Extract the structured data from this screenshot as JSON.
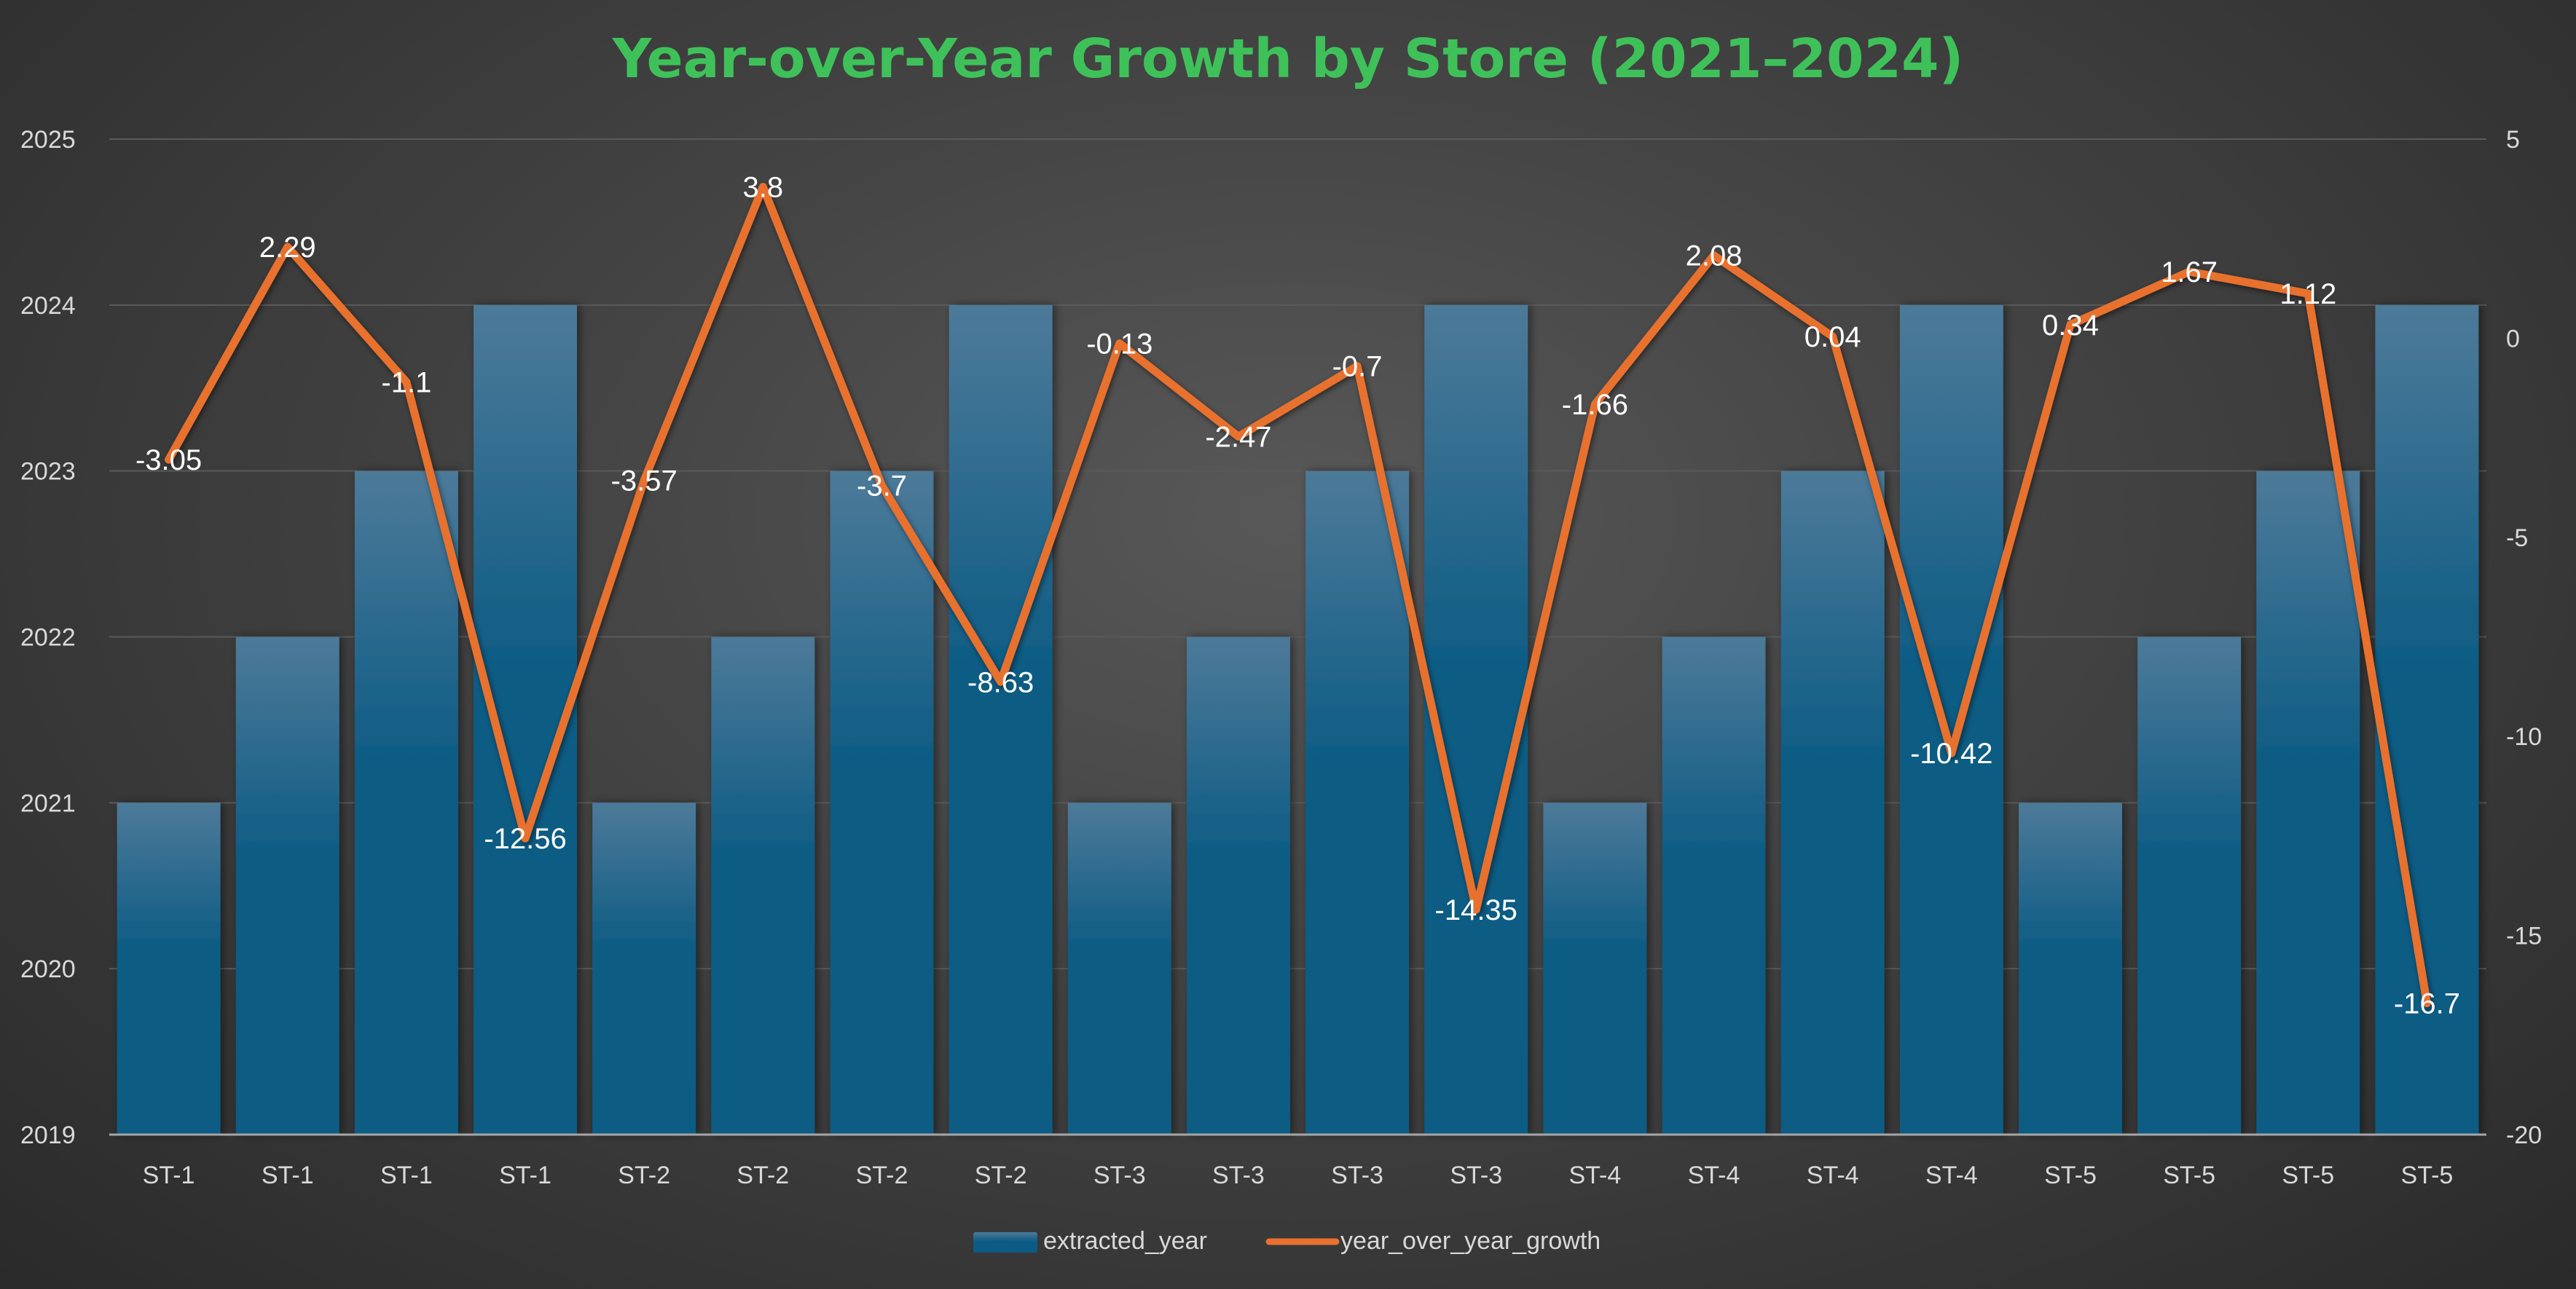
{
  "colors": {
    "title": "#3fc15a",
    "bar_top": "#4d7a99",
    "bar_bottom": "#0c5b84",
    "line": "#e8712f",
    "grid": "#5a5a5a",
    "axis": "#a6a6a6"
  },
  "chart_data": {
    "type": "bar",
    "title": "Year-over-Year Growth by Store (2021–2024)",
    "categories": [
      "ST-1",
      "ST-1",
      "ST-1",
      "ST-1",
      "ST-2",
      "ST-2",
      "ST-2",
      "ST-2",
      "ST-3",
      "ST-3",
      "ST-3",
      "ST-3",
      "ST-4",
      "ST-4",
      "ST-4",
      "ST-4",
      "ST-5",
      "ST-5",
      "ST-5",
      "ST-5"
    ],
    "series": [
      {
        "name": "extracted_year",
        "type": "bar",
        "axis": "left",
        "values": [
          2021,
          2022,
          2023,
          2024,
          2021,
          2022,
          2023,
          2024,
          2021,
          2022,
          2023,
          2024,
          2021,
          2022,
          2023,
          2024,
          2021,
          2022,
          2023,
          2024
        ]
      },
      {
        "name": "year_over_year_growth",
        "type": "line",
        "axis": "right",
        "values": [
          -3.05,
          2.29,
          -1.1,
          -12.56,
          -3.57,
          3.8,
          -3.7,
          -8.63,
          -0.13,
          -2.47,
          -0.7,
          -14.35,
          -1.66,
          2.08,
          0.04,
          -10.42,
          0.34,
          1.67,
          1.12,
          -16.7
        ],
        "labels": [
          "-3.05",
          "2.29",
          "-1.1",
          "-12.56",
          "-3.57",
          "3.8",
          "-3.7",
          "-8.63",
          "-0.13",
          "-2.47",
          "-0.7",
          "-14.35",
          "-1.66",
          "2.08",
          "0.04",
          "-10.42",
          "0.34",
          "1.67",
          "1.12",
          "-16.7"
        ]
      }
    ],
    "y_left": {
      "lim": [
        2019,
        2025
      ],
      "ticks": [
        "2019",
        "2020",
        "2021",
        "2022",
        "2023",
        "2024",
        "2025"
      ]
    },
    "y_right": {
      "lim": [
        -20,
        5
      ],
      "ticks": [
        "-20",
        "-15",
        "-10",
        "-5",
        "0",
        "5"
      ]
    },
    "grid": true,
    "legend_position": "bottom"
  }
}
